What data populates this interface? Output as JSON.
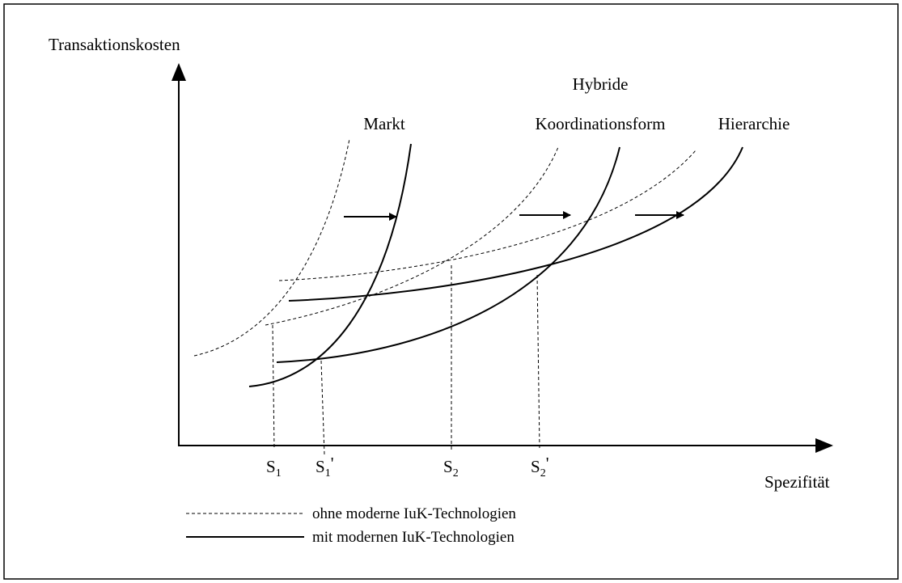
{
  "axes": {
    "y_label": "Transaktionskosten",
    "x_label": "Spezifität"
  },
  "curves": {
    "markt": "Markt",
    "hybrid": [
      "Hybride",
      "Koordinationsform"
    ],
    "hierarchie": "Hierarchie"
  },
  "points": [
    {
      "letter": "S",
      "index": "1"
    },
    {
      "letter": "S",
      "index": "1",
      "suffix": "'"
    },
    {
      "letter": "S",
      "index": "2"
    },
    {
      "letter": "S",
      "index": "2",
      "suffix": "'"
    }
  ],
  "legend": {
    "dashed": "ohne moderne IuK-Technologien",
    "solid": "mit modernen IuK-Technologien"
  }
}
